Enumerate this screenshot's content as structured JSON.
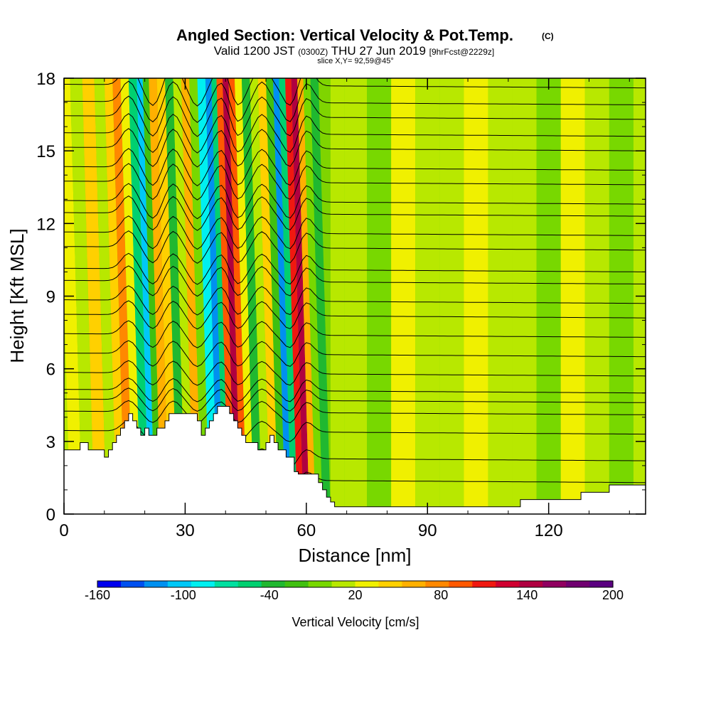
{
  "title": {
    "main": "Angled Section: Vertical Velocity & Pot.Temp.",
    "main_tag": "(C)",
    "valid_prefix": "Valid 1200 JST",
    "valid_utc": "(0300Z)",
    "valid_date": "THU 27 Jun 2019",
    "forecast": "[9hrFcst@2229z]",
    "slice": "slice X,Y= 92,59@45°"
  },
  "chart_data": {
    "type": "heatmap",
    "xlabel": "Distance [nm]",
    "ylabel": "Height [Kft MSL]",
    "xlim": [
      0,
      144
    ],
    "ylim": [
      0,
      18
    ],
    "x_ticks": [
      "0",
      "30",
      "60",
      "90",
      "120"
    ],
    "y_ticks": [
      "0",
      "3",
      "6",
      "9",
      "12",
      "15",
      "18"
    ],
    "x_tick_values": [
      0,
      30,
      60,
      90,
      120
    ],
    "y_tick_values": [
      0,
      3,
      6,
      9,
      12,
      15,
      18
    ],
    "colorbar": {
      "title": "Vertical Velocity [cm/s]",
      "labels": [
        "-160",
        "-100",
        "-40",
        "20",
        "80",
        "140",
        "200"
      ],
      "label_values": [
        -160,
        -100,
        -40,
        20,
        80,
        140,
        200
      ],
      "range": [
        -160,
        200
      ],
      "bins": 18,
      "colors": [
        "#0000ee",
        "#0050f0",
        "#0090f0",
        "#00c8f8",
        "#00f0f0",
        "#00e0a0",
        "#00d070",
        "#20b830",
        "#40c010",
        "#78d800",
        "#b8e800",
        "#f0f000",
        "#ffd000",
        "#ffb000",
        "#ff8800",
        "#ff5800",
        "#f01810",
        "#d00030"
      ],
      "colors_extra": [
        "#b00040",
        "#900060",
        "#700070",
        "#5a0080"
      ]
    },
    "terrain_kft": [
      [
        0,
        2.65
      ],
      [
        4,
        2.65
      ],
      [
        4,
        2.95
      ],
      [
        6,
        2.95
      ],
      [
        6,
        2.65
      ],
      [
        10,
        2.65
      ],
      [
        10,
        2.35
      ],
      [
        11,
        2.35
      ],
      [
        11,
        2.65
      ],
      [
        12,
        2.65
      ],
      [
        12,
        2.95
      ],
      [
        13,
        2.95
      ],
      [
        13,
        3.25
      ],
      [
        14,
        3.25
      ],
      [
        14,
        3.55
      ],
      [
        15,
        3.55
      ],
      [
        15,
        3.85
      ],
      [
        16,
        3.85
      ],
      [
        16,
        4.15
      ],
      [
        17,
        4.15
      ],
      [
        17,
        3.85
      ],
      [
        18,
        3.85
      ],
      [
        18,
        3.55
      ],
      [
        19,
        3.55
      ],
      [
        19,
        3.25
      ],
      [
        20,
        3.25
      ],
      [
        20,
        3.55
      ],
      [
        21,
        3.55
      ],
      [
        21,
        3.25
      ],
      [
        23,
        3.25
      ],
      [
        23,
        3.55
      ],
      [
        25,
        3.55
      ],
      [
        25,
        3.85
      ],
      [
        26,
        3.85
      ],
      [
        26,
        4.15
      ],
      [
        33,
        4.15
      ],
      [
        33,
        3.85
      ],
      [
        34,
        3.85
      ],
      [
        34,
        3.25
      ],
      [
        35,
        3.25
      ],
      [
        35,
        3.55
      ],
      [
        36,
        3.55
      ],
      [
        36,
        3.85
      ],
      [
        37,
        3.85
      ],
      [
        37,
        4.15
      ],
      [
        38,
        4.15
      ],
      [
        38,
        4.45
      ],
      [
        41,
        4.45
      ],
      [
        41,
        4.15
      ],
      [
        42,
        4.15
      ],
      [
        42,
        3.85
      ],
      [
        43,
        3.85
      ],
      [
        43,
        3.55
      ],
      [
        44,
        3.55
      ],
      [
        44,
        3.25
      ],
      [
        45,
        3.25
      ],
      [
        45,
        2.95
      ],
      [
        48,
        2.95
      ],
      [
        48,
        2.65
      ],
      [
        50,
        2.65
      ],
      [
        50,
        2.95
      ],
      [
        51,
        2.95
      ],
      [
        51,
        3.25
      ],
      [
        52,
        3.25
      ],
      [
        52,
        2.95
      ],
      [
        53,
        2.95
      ],
      [
        53,
        2.65
      ],
      [
        55,
        2.65
      ],
      [
        55,
        2.35
      ],
      [
        57,
        2.35
      ],
      [
        57,
        1.75
      ],
      [
        58,
        1.75
      ],
      [
        58,
        1.65
      ],
      [
        63,
        1.65
      ],
      [
        63,
        1.3
      ],
      [
        64,
        1.3
      ],
      [
        64,
        1.0
      ],
      [
        65,
        1.0
      ],
      [
        65,
        0.7
      ],
      [
        66,
        0.7
      ],
      [
        66,
        0.5
      ],
      [
        67,
        0.5
      ],
      [
        67,
        0.3
      ],
      [
        113,
        0.3
      ],
      [
        113,
        0.6
      ],
      [
        128,
        0.6
      ],
      [
        128,
        0.9
      ],
      [
        135,
        0.9
      ],
      [
        135,
        1.2
      ],
      [
        144,
        1.2
      ]
    ],
    "bands": [
      {
        "x": 0,
        "v": 10
      },
      {
        "x": 3,
        "v": 25
      },
      {
        "x": 6,
        "v": 5
      },
      {
        "x": 9,
        "v": 40
      },
      {
        "x": 12,
        "v": 10
      },
      {
        "x": 14,
        "v": 50
      },
      {
        "x": 16,
        "v": 70
      },
      {
        "x": 18,
        "v": 20
      },
      {
        "x": 20,
        "v": -60
      },
      {
        "x": 22,
        "v": -100
      },
      {
        "x": 23,
        "v": -20
      },
      {
        "x": 25,
        "v": 60
      },
      {
        "x": 27,
        "v": 40
      },
      {
        "x": 29,
        "v": -30
      },
      {
        "x": 31,
        "v": 10
      },
      {
        "x": 33,
        "v": 60
      },
      {
        "x": 35,
        "v": 0
      },
      {
        "x": 37,
        "v": -80
      },
      {
        "x": 39,
        "v": -120
      },
      {
        "x": 40,
        "v": -60
      },
      {
        "x": 41.5,
        "v": 90
      },
      {
        "x": 43,
        "v": 150
      },
      {
        "x": 44.5,
        "v": 100
      },
      {
        "x": 46,
        "v": 20
      },
      {
        "x": 48,
        "v": -40
      },
      {
        "x": 50,
        "v": 10
      },
      {
        "x": 52,
        "v": 40
      },
      {
        "x": 54,
        "v": -20
      },
      {
        "x": 55.5,
        "v": -120
      },
      {
        "x": 57,
        "v": -60
      },
      {
        "x": 58.5,
        "v": 110
      },
      {
        "x": 60,
        "v": 140
      },
      {
        "x": 61.5,
        "v": 60
      },
      {
        "x": 63,
        "v": -10
      },
      {
        "x": 65,
        "v": -30
      },
      {
        "x": 67,
        "v": 5
      },
      {
        "x": 72,
        "v": 15
      },
      {
        "x": 78,
        "v": 0
      },
      {
        "x": 84,
        "v": 20
      },
      {
        "x": 90,
        "v": 5
      },
      {
        "x": 96,
        "v": 10
      },
      {
        "x": 102,
        "v": 25
      },
      {
        "x": 108,
        "v": 5
      },
      {
        "x": 114,
        "v": 15
      },
      {
        "x": 120,
        "v": 0
      },
      {
        "x": 126,
        "v": 20
      },
      {
        "x": 132,
        "v": 10
      },
      {
        "x": 138,
        "v": 0
      },
      {
        "x": 144,
        "v": 10
      }
    ],
    "isentropes_kft_at_right": [
      1.3,
      2.2,
      3.3,
      4.1,
      4.6,
      5.0,
      5.7,
      6.5,
      7.3,
      8.1,
      8.7,
      9.5,
      10.0,
      10.9,
      11.5,
      12.3,
      12.8,
      13.6,
      14.2,
      15.0,
      15.6,
      16.3,
      16.9,
      17.6
    ]
  }
}
